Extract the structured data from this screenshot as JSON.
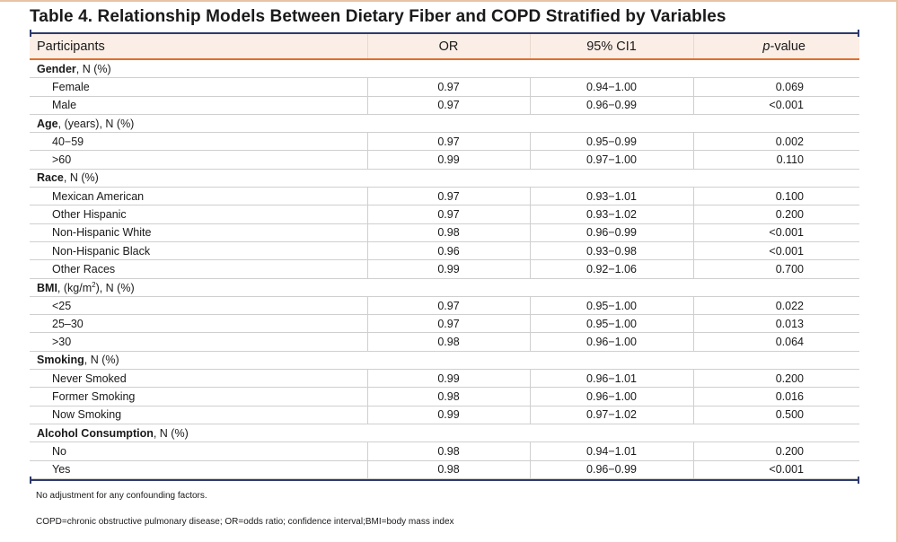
{
  "title": "Table 4. Relationship Models Between Dietary Fiber and COPD Stratified by Variables",
  "headers": {
    "participants": "Participants",
    "or": "OR",
    "ci": "95% CI1",
    "pvalue_italic": "p",
    "pvalue_rest": "-value"
  },
  "groups": [
    {
      "name": "Gender",
      "suffix": ", N (%)",
      "rows": [
        {
          "label": "Female",
          "or": "0.97",
          "ci": "0.94−1.00",
          "p": "0.069"
        },
        {
          "label": "Male",
          "or": "0.97",
          "ci": "0.96−0.99",
          "p": "<0.001"
        }
      ]
    },
    {
      "name": "Age",
      "suffix": ", (years), N (%)",
      "rows": [
        {
          "label": "40−59",
          "or": "0.97",
          "ci": "0.95−0.99",
          "p": "0.002"
        },
        {
          "label": ">60",
          "or": "0.99",
          "ci": "0.97−1.00",
          "p": "0.110"
        }
      ]
    },
    {
      "name": "Race",
      "suffix": ", N (%)",
      "rows": [
        {
          "label": "Mexican American",
          "or": "0.97",
          "ci": "0.93−1.01",
          "p": "0.100"
        },
        {
          "label": "Other Hispanic",
          "or": "0.97",
          "ci": "0.93−1.02",
          "p": "0.200"
        },
        {
          "label": "Non-Hispanic White",
          "or": "0.98",
          "ci": "0.96−0.99",
          "p": "<0.001"
        },
        {
          "label": "Non-Hispanic Black",
          "or": "0.96",
          "ci": "0.93−0.98",
          "p": "<0.001"
        },
        {
          "label": "Other Races",
          "or": "0.99",
          "ci": "0.92−1.06",
          "p": "0.700"
        }
      ]
    },
    {
      "name": "BMI",
      "suffix_pre": ", (kg/m",
      "suffix_sup": "2",
      "suffix_post": "), N (%)",
      "rows": [
        {
          "label": "<25",
          "or": "0.97",
          "ci": "0.95−1.00",
          "p": "0.022"
        },
        {
          "label": "25–30",
          "or": "0.97",
          "ci": "0.95−1.00",
          "p": "0.013"
        },
        {
          "label": ">30",
          "or": "0.98",
          "ci": "0.96−1.00",
          "p": "0.064"
        }
      ]
    },
    {
      "name": "Smoking",
      "suffix": ", N (%)",
      "rows": [
        {
          "label": "Never Smoked",
          "or": "0.99",
          "ci": "0.96−1.01",
          "p": "0.200"
        },
        {
          "label": "Former Smoking",
          "or": "0.98",
          "ci": "0.96−1.00",
          "p": "0.016"
        },
        {
          "label": "Now Smoking",
          "or": "0.99",
          "ci": "0.97−1.02",
          "p": "0.500"
        }
      ]
    },
    {
      "name": "Alcohol Consumption",
      "suffix": ", N (%)",
      "rows": [
        {
          "label": "No",
          "or": "0.98",
          "ci": "0.94−1.01",
          "p": "0.200"
        },
        {
          "label": "Yes",
          "or": "0.98",
          "ci": "0.96−0.99",
          "p": "<0.001"
        }
      ]
    }
  ],
  "notes": {
    "adjustment": "No adjustment for any confounding factors.",
    "abbreviations": "COPD=chronic obstructive pulmonary disease; OR=odds ratio; confidence interval;BMI=body mass index"
  },
  "colors": {
    "header_bg": "#fbeee6",
    "header_rule": "#e06f2e",
    "frame_rule": "#2d3b6b"
  }
}
